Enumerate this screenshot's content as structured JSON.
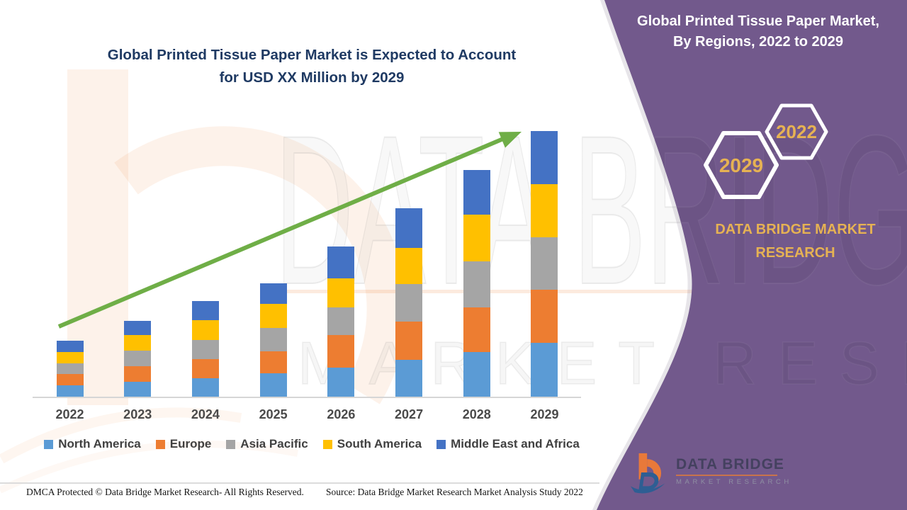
{
  "header": {
    "title_line1": "Global Printed Tissue Paper Market is Expected to Account",
    "title_line2": "for USD XX Million by 2029"
  },
  "side_panel": {
    "title_line1": "Global Printed Tissue Paper Market,",
    "title_line2": "By Regions, 2022 to 2029",
    "hexagons": [
      {
        "label": "2029"
      },
      {
        "label": "2022"
      }
    ],
    "brand_line1": "DATA BRIDGE MARKET",
    "brand_line2": "RESEARCH"
  },
  "logo": {
    "name": "DATA BRIDGE",
    "tagline": "MARKET RESEARCH"
  },
  "watermark": {
    "text1": "DATA BRIDGE",
    "text2": "MARKET RESEARCH"
  },
  "footer": {
    "left": "DMCA Protected © Data Bridge Market Research- All Rights Reserved.",
    "right": "Source: Data Bridge Market Research Market Analysis Study 2022"
  },
  "colors": {
    "panel_purple": "#72598C",
    "gold": "#E6B253",
    "title_navy": "#1F3A63",
    "trend_green": "#6FAE47",
    "axis_gray": "#D6D6D6"
  },
  "chart_data": {
    "type": "bar",
    "stacked": true,
    "title": "Global Printed Tissue Paper Market is Expected to Account for USD XX Million by 2029",
    "categories": [
      "2022",
      "2023",
      "2024",
      "2025",
      "2026",
      "2027",
      "2028",
      "2029"
    ],
    "series": [
      {
        "name": "North America",
        "color": "#5B9BD5",
        "values": [
          17,
          22,
          27,
          34,
          42,
          53,
          64,
          77
        ]
      },
      {
        "name": "Europe",
        "color": "#ED7D31",
        "values": [
          16,
          22,
          27,
          31,
          46,
          54,
          63,
          75
        ]
      },
      {
        "name": "Asia Pacific",
        "color": "#A5A5A5",
        "values": [
          15,
          22,
          27,
          33,
          39,
          53,
          65,
          74
        ]
      },
      {
        "name": "South America",
        "color": "#FFC000",
        "values": [
          16,
          22,
          28,
          34,
          41,
          51,
          66,
          75
        ]
      },
      {
        "name": "Middle East and Africa",
        "color": "#4472C4",
        "values": [
          16,
          20,
          27,
          29,
          45,
          56,
          63,
          75
        ]
      }
    ],
    "totals": [
      80,
      108,
      136,
      161,
      213,
      267,
      321,
      376
    ],
    "xlabel": "",
    "ylabel": "",
    "ylim": [
      0,
      400
    ],
    "y_axis_visible": false,
    "grid": false,
    "legend_position": "bottom",
    "trend_arrow": true
  }
}
